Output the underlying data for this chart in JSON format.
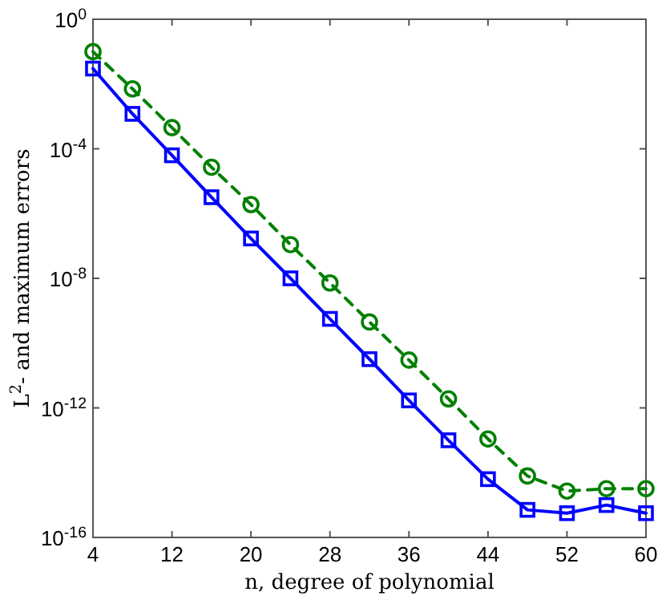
{
  "chart_data": {
    "type": "line",
    "xlabel": "n, degree of polynomial",
    "ylabel": "L$^{2}$- and maximum errors",
    "x": [
      4,
      8,
      12,
      16,
      20,
      24,
      28,
      32,
      36,
      40,
      44,
      48,
      52,
      56,
      60
    ],
    "xlim": [
      4,
      60
    ],
    "xticks": [
      4,
      12,
      20,
      28,
      36,
      44,
      52,
      60
    ],
    "log": "y",
    "ylim": [
      1e-16,
      1
    ],
    "yticks": [
      {
        "value": 1,
        "label": "10$^{0}$"
      },
      {
        "value": 0.0001,
        "label": "10$^{-4}$"
      },
      {
        "value": 1e-08,
        "label": "10$^{-8}$"
      },
      {
        "value": 1e-12,
        "label": "10$^{-12}$"
      },
      {
        "value": 1e-16,
        "label": "10$^{-16}$"
      }
    ],
    "grid": false,
    "series": [
      {
        "color": "#0000ff",
        "marker": "square",
        "line_style": "solid",
        "values": [
          0.03,
          0.0012,
          6.3e-05,
          3.2e-06,
          1.7e-07,
          1e-08,
          5.6e-10,
          3.2e-11,
          1.7e-12,
          1e-13,
          6.3e-15,
          7.1e-16,
          5.6e-16,
          1e-15,
          5.6e-16
        ]
      },
      {
        "color": "#008000",
        "marker": "circle",
        "line_style": "dashed",
        "values": [
          0.1,
          0.0071,
          0.00045,
          2.7e-05,
          1.9e-06,
          1.1e-07,
          7.2e-09,
          4.5e-10,
          3e-11,
          1.9e-12,
          1.1e-13,
          7.9e-15,
          2.7e-15,
          3.2e-15,
          3.2e-15
        ]
      }
    ]
  }
}
